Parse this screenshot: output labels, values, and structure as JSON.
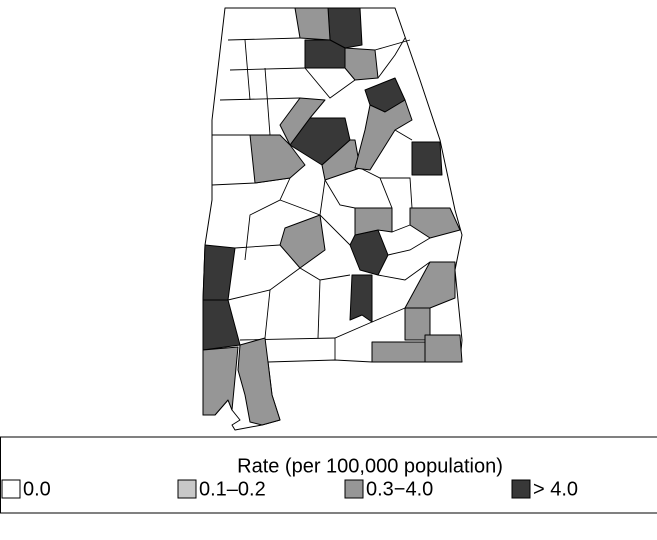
{
  "legend": {
    "title": "Rate (per 100,000 population)",
    "items": [
      {
        "label": "0.0",
        "color": "#ffffff"
      },
      {
        "label": "0.1–0.2",
        "color": "#c8c8c8"
      },
      {
        "label": "0.3−4.0",
        "color": "#969696"
      },
      {
        "label": "> 4.0",
        "color": "#383838"
      }
    ]
  }
}
